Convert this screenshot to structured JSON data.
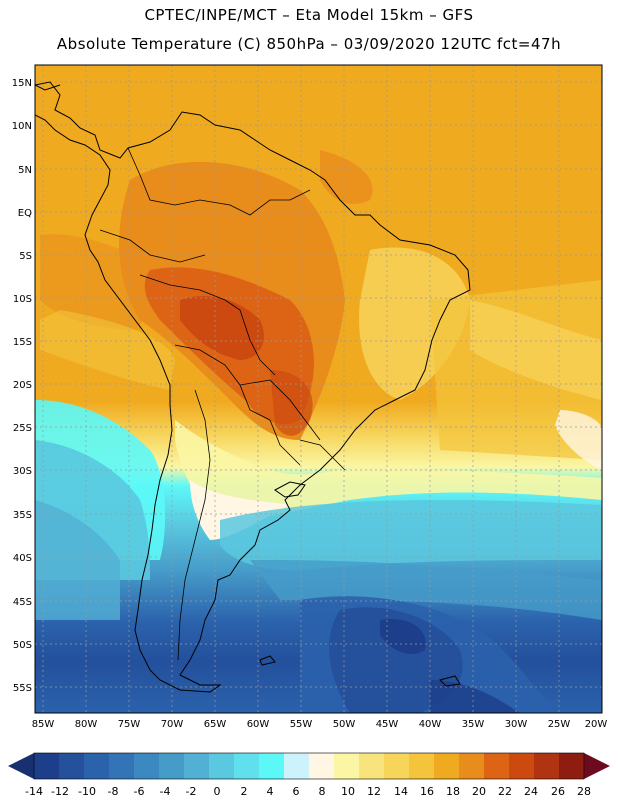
{
  "header": {
    "line1": "CPTEC/INPE/MCT –  Eta Model 15km – GFS",
    "line2": "Absolute Temperature (C) 850hPa – 03/09/2020 12UTC fct=47h"
  },
  "map": {
    "lat_labels": [
      "15N",
      "10N",
      "5N",
      "EQ",
      "5S",
      "10S",
      "15S",
      "20S",
      "25S",
      "30S",
      "35S",
      "40S",
      "45S",
      "50S",
      "55S"
    ],
    "lon_labels": [
      "85W",
      "80W",
      "75W",
      "70W",
      "65W",
      "60W",
      "55W",
      "50W",
      "45W",
      "40W",
      "35W",
      "30W",
      "25W",
      "20W"
    ]
  },
  "colorbar": {
    "labels": [
      "-14",
      "-12",
      "-10",
      "-8",
      "-6",
      "-4",
      "-2",
      "0",
      "2",
      "4",
      "6",
      "8",
      "10",
      "12",
      "14",
      "16",
      "18",
      "20",
      "22",
      "24",
      "26",
      "28"
    ],
    "colors": [
      "#1d3e8a",
      "#24509c",
      "#2b62ac",
      "#3374b6",
      "#3c88c0",
      "#469cc9",
      "#52b0d5",
      "#5ac8df",
      "#60e0ec",
      "#5cf8f8",
      "#ccf2fb",
      "#fff6e4",
      "#fbf6a4",
      "#f8e47c",
      "#f7d45a",
      "#f3c43c",
      "#f0aa20",
      "#e88c1c",
      "#dd6414",
      "#cc4a10",
      "#b03412",
      "#8e1c10"
    ],
    "low_arrow_color": "#183070",
    "high_arrow_color": "#6e0a20"
  }
}
